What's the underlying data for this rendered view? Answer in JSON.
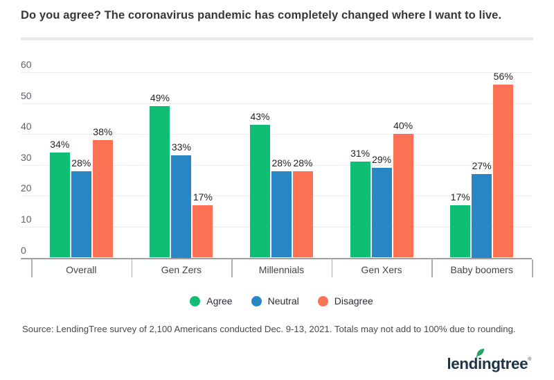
{
  "title": "Do you agree? The coronavirus pandemic has completely changed where I want to live.",
  "chart_data": {
    "type": "bar",
    "categories": [
      "Overall",
      "Gen Zers",
      "Millennials",
      "Gen Xers",
      "Baby boomers"
    ],
    "series": [
      {
        "name": "Agree",
        "color": "#0fbd74",
        "values": [
          34,
          49,
          43,
          31,
          17
        ]
      },
      {
        "name": "Neutral",
        "color": "#2986c4",
        "values": [
          28,
          33,
          28,
          29,
          27
        ]
      },
      {
        "name": "Disagree",
        "color": "#fd7254",
        "values": [
          38,
          17,
          28,
          40,
          56
        ]
      }
    ],
    "value_label_suffix": "%",
    "title": "Do you agree? The coronavirus pandemic has completely changed where I want to live.",
    "xlabel": "",
    "ylabel": "",
    "ylim": [
      0,
      60
    ],
    "yticks": [
      0,
      10,
      20,
      30,
      40,
      50,
      60
    ],
    "grid": true,
    "legend_position": "bottom"
  },
  "source": "Source: LendingTree survey of 2,100 Americans conducted Dec. 9-13, 2021. Totals may not add to 100% due to rounding.",
  "logo": {
    "text": "lendingtree",
    "registered_mark": "®",
    "text_color": "#1d3349",
    "leaf_color": "#27a567"
  }
}
